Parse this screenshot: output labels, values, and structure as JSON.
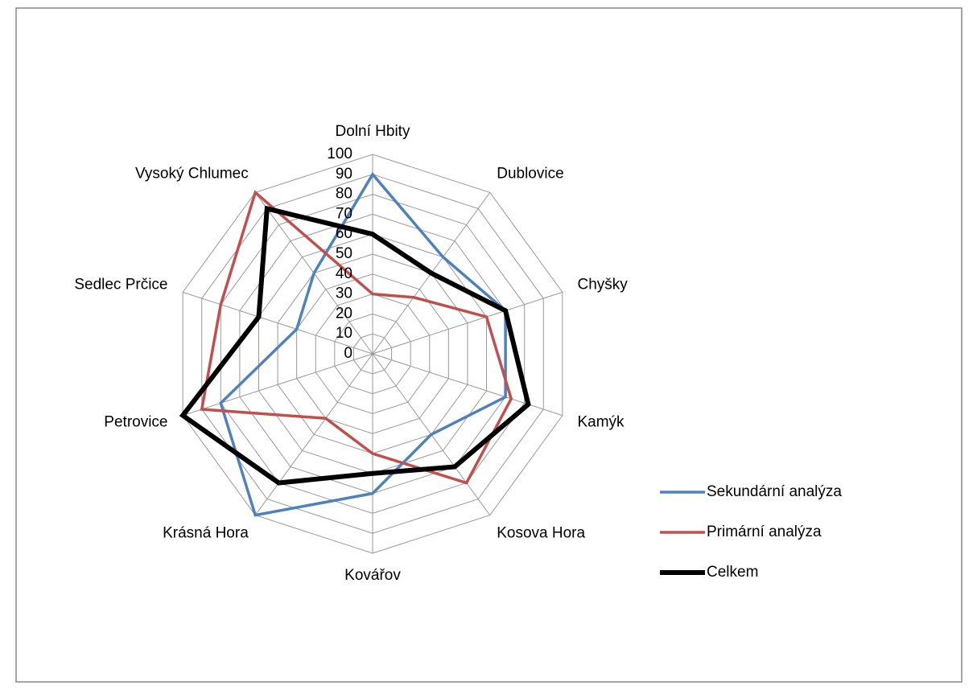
{
  "chart_data": {
    "type": "radar",
    "categories": [
      "Dolní Hbity",
      "Dublovice",
      "Chyšky",
      "Kamýk",
      "Kosova Hora",
      "Kovářov",
      "Krásná Hora",
      "Petrovice",
      "Sedlec Prčice",
      "Vysoký Chlumec"
    ],
    "series": [
      {
        "name": "Sekundární analýza",
        "color": "#4f81bd",
        "values": [
          90,
          60,
          70,
          70,
          50,
          70,
          100,
          80,
          40,
          50
        ]
      },
      {
        "name": "Primární analýza",
        "color": "#c0504d",
        "values": [
          30,
          35,
          60,
          73,
          80,
          50,
          40,
          90,
          80,
          100
        ]
      },
      {
        "name": "Celkem",
        "color": "#000000",
        "values": [
          60,
          50,
          70,
          82,
          70,
          60,
          80,
          100,
          60,
          90
        ]
      }
    ],
    "ylim": [
      0,
      100
    ],
    "yticks": [
      0,
      10,
      20,
      30,
      40,
      50,
      60,
      70,
      80,
      90,
      100
    ],
    "grid": true,
    "legend": "right"
  }
}
